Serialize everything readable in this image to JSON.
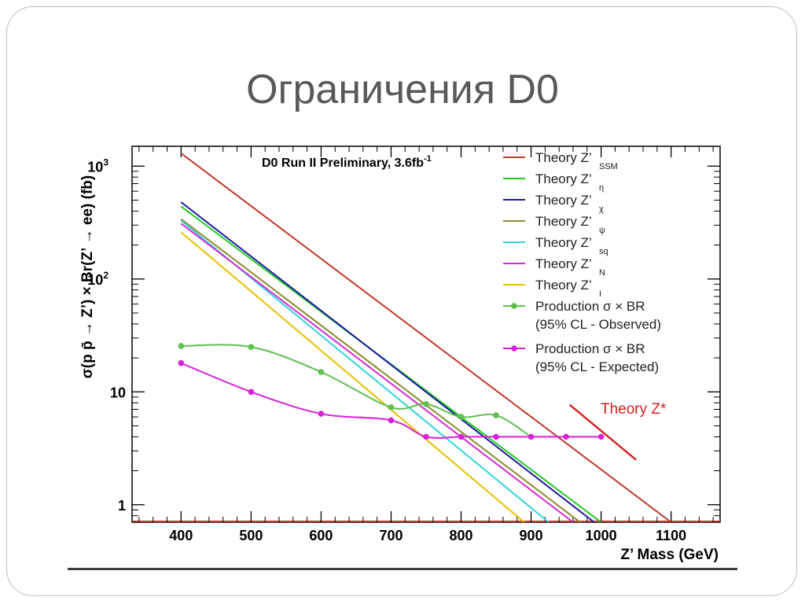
{
  "slide": {
    "title": "Ограничения D0"
  },
  "chart_data": {
    "type": "line",
    "annotation": "D0 Run II Preliminary, 3.6fb",
    "annotation_sup": "-1",
    "xlabel": "Z’ Mass (GeV)",
    "ylabel": "σ(p p̄ → Z’) × Br(Z’ → ee) (fb)",
    "xlim": [
      330,
      1170
    ],
    "ylim": [
      0.7,
      1500
    ],
    "y_scale": "log",
    "x_ticks": [
      400,
      500,
      600,
      700,
      800,
      900,
      1000,
      1100
    ],
    "y_ticks": [
      {
        "value": 1,
        "label": "1"
      },
      {
        "value": 10,
        "label": "10"
      },
      {
        "value": 100,
        "label": "10",
        "sup": "2"
      },
      {
        "value": 1000,
        "label": "10",
        "sup": "3"
      }
    ],
    "legend_position": "top-right",
    "series": [
      {
        "name": "Theory Z’",
        "sub": "SSM",
        "color": "#c0392b",
        "x": [
          400,
          1100
        ],
        "y": [
          1300,
          0.7
        ]
      },
      {
        "name": "Theory Z’",
        "sub": "η",
        "color": "#22cc22",
        "x": [
          400,
          1000
        ],
        "y": [
          440,
          0.7
        ]
      },
      {
        "name": "Theory Z’",
        "sub": "χ",
        "color": "#1a1aa0",
        "x": [
          400,
          990
        ],
        "y": [
          480,
          0.7
        ]
      },
      {
        "name": "Theory Z’",
        "sub": "ψ",
        "color": "#8b8b2a",
        "x": [
          400,
          970
        ],
        "y": [
          340,
          0.7
        ]
      },
      {
        "name": "Theory Z’",
        "sub": "sq",
        "color": "#2ed3dc",
        "x": [
          400,
          925
        ],
        "y": [
          330,
          0.7
        ]
      },
      {
        "name": "Theory Z’",
        "sub": "N",
        "color": "#d52bd5",
        "x": [
          400,
          960
        ],
        "y": [
          310,
          0.7
        ]
      },
      {
        "name": "Theory Z’",
        "sub": "I",
        "color": "#e8c000",
        "x": [
          400,
          890
        ],
        "y": [
          260,
          0.7
        ]
      },
      {
        "name": "Production σ × BR",
        "name2": "(95% CL - Observed)",
        "color": "#5fbf4f",
        "markers": true,
        "x": [
          400,
          500,
          600,
          700,
          750,
          800,
          850,
          900
        ],
        "y": [
          25.5,
          25,
          15,
          7.3,
          7.8,
          6,
          6.2,
          4.0
        ],
        "marker_x": [
          400,
          500,
          600,
          700,
          750,
          800,
          850
        ]
      },
      {
        "name": "Production σ × BR",
        "name2": "(95% CL - Expected)",
        "color": "#d822d8",
        "markers": true,
        "x": [
          400,
          500,
          600,
          700,
          750,
          800,
          850,
          900,
          950,
          1000
        ],
        "y": [
          18,
          10,
          6.4,
          5.6,
          4.0,
          4.0,
          4.0,
          4.0,
          4.0,
          4.0
        ],
        "marker_x": [
          400,
          500,
          600,
          700,
          750,
          800,
          850,
          900,
          950,
          1000
        ]
      },
      {
        "name": "Theory Z*",
        "color": "#d42020",
        "x": [
          955,
          1050
        ],
        "y": [
          7.7,
          2.5
        ],
        "inline_label": true
      }
    ]
  }
}
